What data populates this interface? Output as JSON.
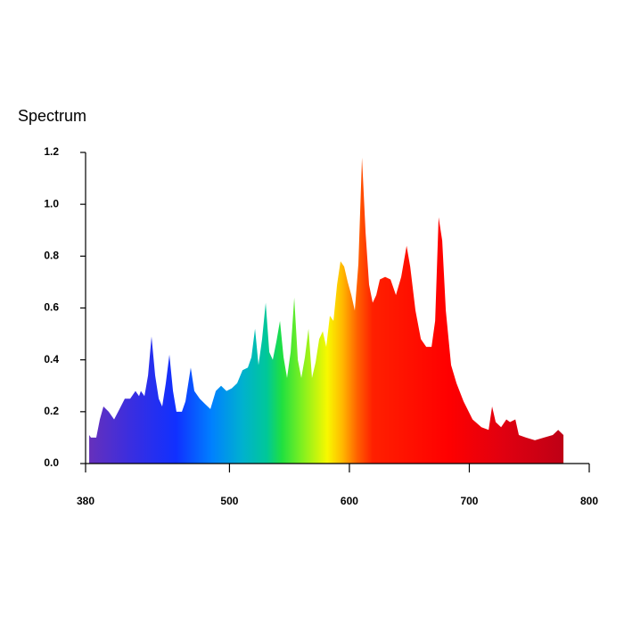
{
  "chart_data": {
    "type": "area",
    "title": "Spectrum",
    "x": [
      383.0,
      384.5,
      388.9,
      391.9,
      394.9,
      399.3,
      403.8,
      408.3,
      412.7,
      417.2,
      421.6,
      424.6,
      426.1,
      429.1,
      432.1,
      435.0,
      438.0,
      441.0,
      443.9,
      446.9,
      449.9,
      452.9,
      455.8,
      460.3,
      463.3,
      467.7,
      470.7,
      475.2,
      479.6,
      484.1,
      488.6,
      493.0,
      497.5,
      501.9,
      506.4,
      510.9,
      515.3,
      518.3,
      521.3,
      524.2,
      527.2,
      530.2,
      533.2,
      536.1,
      539.1,
      542.1,
      545.1,
      548.0,
      551.0,
      554.0,
      557.0,
      559.9,
      562.9,
      565.9,
      568.8,
      571.8,
      574.8,
      577.8,
      580.7,
      583.7,
      586.7,
      589.7,
      592.6,
      595.6,
      598.6,
      601.6,
      604.5,
      607.5,
      610.5,
      613.5,
      616.4,
      619.4,
      622.4,
      625.4,
      629.8,
      634.3,
      638.8,
      643.2,
      647.7,
      650.7,
      655.1,
      659.6,
      664.1,
      668.5,
      671.5,
      674.4,
      677.4,
      680.4,
      684.8,
      689.3,
      695.2,
      702.7,
      710.1,
      716.1,
      719.0,
      722.0,
      726.5,
      730.9,
      733.9,
      738.4,
      741.3,
      747.3,
      754.7,
      762.2,
      769.6,
      774.1,
      778.5
    ],
    "values": [
      0.11,
      0.1,
      0.1,
      0.17,
      0.22,
      0.2,
      0.17,
      0.21,
      0.25,
      0.25,
      0.28,
      0.26,
      0.28,
      0.26,
      0.34,
      0.49,
      0.34,
      0.25,
      0.22,
      0.31,
      0.42,
      0.28,
      0.2,
      0.2,
      0.24,
      0.37,
      0.28,
      0.25,
      0.23,
      0.21,
      0.28,
      0.3,
      0.28,
      0.29,
      0.31,
      0.36,
      0.37,
      0.41,
      0.52,
      0.38,
      0.48,
      0.62,
      0.43,
      0.4,
      0.47,
      0.55,
      0.41,
      0.33,
      0.43,
      0.64,
      0.4,
      0.33,
      0.41,
      0.52,
      0.33,
      0.39,
      0.48,
      0.51,
      0.45,
      0.57,
      0.55,
      0.69,
      0.78,
      0.76,
      0.7,
      0.65,
      0.59,
      0.77,
      1.18,
      0.89,
      0.69,
      0.62,
      0.65,
      0.71,
      0.72,
      0.71,
      0.65,
      0.72,
      0.84,
      0.76,
      0.59,
      0.48,
      0.45,
      0.45,
      0.55,
      0.95,
      0.86,
      0.59,
      0.38,
      0.31,
      0.24,
      0.17,
      0.14,
      0.13,
      0.22,
      0.16,
      0.14,
      0.17,
      0.16,
      0.17,
      0.11,
      0.1,
      0.09,
      0.1,
      0.11,
      0.13,
      0.11
    ],
    "xlim": [
      380,
      800
    ],
    "xticks": [
      380,
      500,
      600,
      700,
      800
    ],
    "ylim": [
      0,
      1.2
    ],
    "yticks": [
      {
        "value": 0,
        "label": "0.0"
      },
      0.2,
      0.4,
      0.6,
      0.8,
      {
        "value": 1,
        "label": "1.0"
      },
      1.2
    ],
    "grid": false
  }
}
